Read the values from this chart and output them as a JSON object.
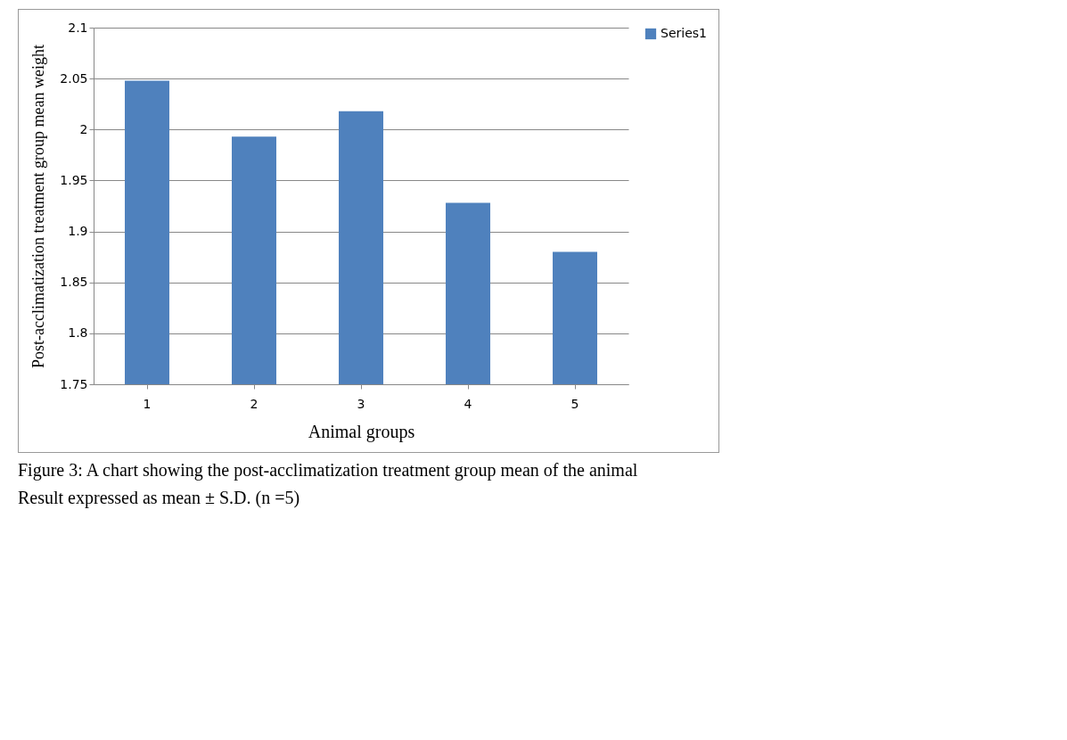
{
  "chart_data": {
    "type": "bar",
    "xlabel": "Animal groups",
    "ylabel": "Post-acclimatization treatment group mean weight",
    "categories": [
      "1",
      "2",
      "3",
      "4",
      "5"
    ],
    "series": [
      {
        "name": "Series1",
        "color": "#4f81bd",
        "values": [
          2.048,
          1.993,
          2.018,
          1.928,
          1.88
        ]
      }
    ],
    "ylim": [
      1.75,
      2.1
    ],
    "yticks": [
      1.75,
      1.8,
      1.85,
      1.9,
      1.95,
      2,
      2.05,
      2.1
    ],
    "grid": "y",
    "legend": "right",
    "annotations": [
      "Figure 3: A chart showing the post-acclimatization treatment group mean of the animal",
      "Result expressed as mean ± S.D. (n =5)"
    ]
  }
}
